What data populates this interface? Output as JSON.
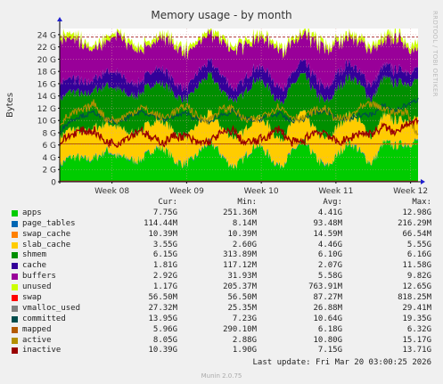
{
  "page": {
    "title": "Memory usage - by month",
    "side_label": "RRDTOOL / TOBI OETIKER",
    "last_update": "Last update: Fri Mar 20 03:00:25 2026",
    "footer": "Munin 2.0.75"
  },
  "legend": {
    "headers": {
      "cur": "Cur:",
      "min": "Min:",
      "avg": "Avg:",
      "max": "Max:"
    },
    "rows": [
      {
        "name": "apps",
        "color": "#00cc00",
        "cur": "7.75G",
        "min": "251.36M",
        "avg": "4.41G",
        "max": "12.98G"
      },
      {
        "name": "page_tables",
        "color": "#0066b3",
        "cur": "114.44M",
        "min": "8.14M",
        "avg": "93.48M",
        "max": "216.29M"
      },
      {
        "name": "swap_cache",
        "color": "#ff8000",
        "cur": "10.39M",
        "min": "10.39M",
        "avg": "14.59M",
        "max": "66.54M"
      },
      {
        "name": "slab_cache",
        "color": "#ffcc00",
        "cur": "3.55G",
        "min": "2.60G",
        "avg": "4.46G",
        "max": "5.55G"
      },
      {
        "name": "shmem",
        "color": "#008f00",
        "cur": "6.15G",
        "min": "313.89M",
        "avg": "6.10G",
        "max": "6.16G"
      },
      {
        "name": "cache",
        "color": "#330099",
        "cur": "1.81G",
        "min": "117.12M",
        "avg": "2.07G",
        "max": "11.58G"
      },
      {
        "name": "buffers",
        "color": "#990099",
        "cur": "2.92G",
        "min": "31.93M",
        "avg": "5.58G",
        "max": "9.82G"
      },
      {
        "name": "unused",
        "color": "#ccff00",
        "cur": "1.17G",
        "min": "205.37M",
        "avg": "763.91M",
        "max": "12.65G"
      },
      {
        "name": "swap",
        "color": "#ff0000",
        "cur": "56.50M",
        "min": "56.50M",
        "avg": "87.27M",
        "max": "818.25M"
      },
      {
        "name": "vmalloc_used",
        "color": "#808080",
        "cur": "27.32M",
        "min": "25.35M",
        "avg": "26.88M",
        "max": "29.41M"
      },
      {
        "name": "committed",
        "color": "#004d4d",
        "cur": "13.95G",
        "min": "7.23G",
        "avg": "10.64G",
        "max": "19.35G"
      },
      {
        "name": "mapped",
        "color": "#b35a00",
        "cur": "5.96G",
        "min": "290.10M",
        "avg": "6.18G",
        "max": "6.32G"
      },
      {
        "name": "active",
        "color": "#b38f00",
        "cur": "8.05G",
        "min": "2.88G",
        "avg": "10.80G",
        "max": "15.17G"
      },
      {
        "name": "inactive",
        "color": "#990000",
        "cur": "10.39G",
        "min": "1.90G",
        "avg": "7.15G",
        "max": "13.71G"
      }
    ]
  },
  "chart_data": {
    "type": "area",
    "title": "Memory usage - by month",
    "ylabel": "Bytes",
    "ylim": [
      0,
      25
    ],
    "y_unit": "G",
    "yticks": [
      0,
      2,
      4,
      6,
      8,
      10,
      12,
      14,
      16,
      18,
      20,
      22,
      24
    ],
    "ytick_labels": [
      "0",
      "2 G",
      "4 G",
      "6 G",
      "8 G",
      "10 G",
      "12 G",
      "14 G",
      "16 G",
      "18 G",
      "20 G",
      "22 G",
      "24 G"
    ],
    "x_range_weeks": [
      7.3,
      12.1
    ],
    "xticks": [
      8,
      9,
      10,
      11,
      12
    ],
    "xtick_labels": [
      "Week 08",
      "Week 09",
      "Week 10",
      "Week 11",
      "Week 12"
    ],
    "grid": true,
    "stacked_series": [
      {
        "name": "apps",
        "color": "#00cc00",
        "profile": [
          2.5,
          3.1,
          3.6,
          4.8,
          5.1,
          3.0,
          3.6,
          4.5,
          5.3,
          4.4,
          3.2,
          3.9,
          4.7,
          5.5,
          4.2,
          3.4,
          4.0,
          5.1,
          4.3,
          3.5,
          4.6,
          5.6,
          4.1,
          3.3,
          4.4,
          5.4,
          4.6,
          3.9,
          6.6,
          4.8,
          5.9,
          7.7
        ]
      },
      {
        "name": "page_tables",
        "color": "#0066b3",
        "profile": [
          0.09,
          0.09,
          0.1,
          0.1,
          0.09,
          0.09,
          0.1,
          0.1,
          0.09,
          0.09,
          0.1,
          0.1,
          0.09,
          0.09,
          0.1,
          0.1,
          0.09,
          0.09,
          0.1,
          0.1,
          0.09,
          0.09,
          0.1,
          0.1,
          0.09,
          0.09,
          0.1,
          0.1,
          0.09,
          0.1,
          0.11,
          0.11
        ]
      },
      {
        "name": "swap_cache",
        "color": "#ff8000",
        "profile": [
          0.015,
          0.015,
          0.015,
          0.015,
          0.015,
          0.015,
          0.015,
          0.015,
          0.015,
          0.015,
          0.015,
          0.015,
          0.015,
          0.015,
          0.015,
          0.015,
          0.015,
          0.015,
          0.015,
          0.015,
          0.015,
          0.015,
          0.015,
          0.015,
          0.015,
          0.015,
          0.015,
          0.015,
          0.015,
          0.012,
          0.011,
          0.01
        ]
      },
      {
        "name": "slab_cache",
        "color": "#ffcc00",
        "profile": [
          4.3,
          4.6,
          4.2,
          4.9,
          4.4,
          4.7,
          4.1,
          4.8,
          4.5,
          4.3,
          4.6,
          4.2,
          4.9,
          4.5,
          4.4,
          4.7,
          4.3,
          4.6,
          4.8,
          4.2,
          4.5,
          4.7,
          4.4,
          4.3,
          4.6,
          4.5,
          4.8,
          4.2,
          4.4,
          4.1,
          3.8,
          3.55
        ]
      },
      {
        "name": "shmem",
        "color": "#008f00",
        "profile": [
          6.1,
          6.1,
          6.1,
          6.1,
          6.1,
          6.1,
          6.1,
          6.1,
          6.1,
          6.1,
          6.1,
          6.1,
          6.1,
          6.1,
          6.1,
          6.1,
          6.1,
          6.1,
          6.1,
          6.1,
          6.1,
          6.1,
          6.1,
          6.1,
          6.1,
          6.1,
          6.1,
          6.1,
          6.1,
          6.1,
          6.1,
          6.15
        ]
      },
      {
        "name": "cache",
        "color": "#330099",
        "profile": [
          2.6,
          2.2,
          2.0,
          1.8,
          2.3,
          2.6,
          2.1,
          1.9,
          2.2,
          2.5,
          2.0,
          1.8,
          2.4,
          2.1,
          2.6,
          1.9,
          2.2,
          2.0,
          2.5,
          2.3,
          1.8,
          2.1,
          2.4,
          2.0,
          2.6,
          2.2,
          1.9,
          2.3,
          2.0,
          2.1,
          1.9,
          1.81
        ]
      },
      {
        "name": "buffers",
        "color": "#990099",
        "profile": [
          6.8,
          6.4,
          6.1,
          5.1,
          4.9,
          6.3,
          6.1,
          5.0,
          4.5,
          5.3,
          6.2,
          5.7,
          4.8,
          4.3,
          5.6,
          6.3,
          5.6,
          4.6,
          5.0,
          6.2,
          5.3,
          4.1,
          5.7,
          6.4,
          5.1,
          4.2,
          4.9,
          5.8,
          3.8,
          5.2,
          4.2,
          2.92
        ]
      },
      {
        "name": "unused",
        "color": "#ccff00",
        "profile": [
          0.8,
          0.9,
          0.7,
          0.6,
          0.8,
          0.5,
          0.8,
          0.7,
          0.7,
          0.6,
          0.8,
          0.8,
          0.6,
          0.7,
          0.8,
          0.6,
          0.7,
          0.7,
          0.6,
          0.8,
          0.6,
          0.7,
          0.8,
          0.7,
          0.6,
          0.7,
          0.8,
          0.6,
          0.9,
          0.8,
          0.7,
          1.17
        ]
      }
    ],
    "line_series": [
      {
        "name": "swap",
        "color": "#ff0000",
        "level": 0.09
      },
      {
        "name": "vmalloc_used",
        "color": "#808080",
        "level": 0.027
      },
      {
        "name": "committed",
        "color": "#004d4d",
        "profile": [
          8.2,
          9.5,
          10.8,
          11.9,
          10.2,
          9.0,
          10.5,
          12.1,
          11.0,
          9.4,
          10.7,
          11.8,
          10.1,
          9.2,
          10.9,
          12.0,
          10.4,
          9.3,
          10.6,
          11.7,
          10.0,
          9.5,
          11.1,
          12.2,
          10.5,
          9.6,
          10.8,
          11.5,
          12.6,
          10.9,
          12.4,
          13.95
        ]
      },
      {
        "name": "mapped",
        "color": "#b35a00",
        "level": 6.18
      },
      {
        "name": "active",
        "color": "#b38f00",
        "profile": [
          9.6,
          10.4,
          11.6,
          13.4,
          10.3,
          9.4,
          11.0,
          12.8,
          11.2,
          9.8,
          11.4,
          13.0,
          10.5,
          9.6,
          11.8,
          12.6,
          10.1,
          9.5,
          11.2,
          12.9,
          10.8,
          9.7,
          11.5,
          12.4,
          10.3,
          9.8,
          11.9,
          13.2,
          12.0,
          10.6,
          11.4,
          8.05
        ]
      },
      {
        "name": "inactive",
        "color": "#990000",
        "profile": [
          6.3,
          6.9,
          8.3,
          9.1,
          6.5,
          5.5,
          7.4,
          9.4,
          7.0,
          5.6,
          7.5,
          8.2,
          6.3,
          5.8,
          7.8,
          9.2,
          6.4,
          5.8,
          7.3,
          9.6,
          6.5,
          5.7,
          8.0,
          8.9,
          6.5,
          6.1,
          7.9,
          8.6,
          9.2,
          7.1,
          9.5,
          10.39
        ]
      }
    ]
  }
}
